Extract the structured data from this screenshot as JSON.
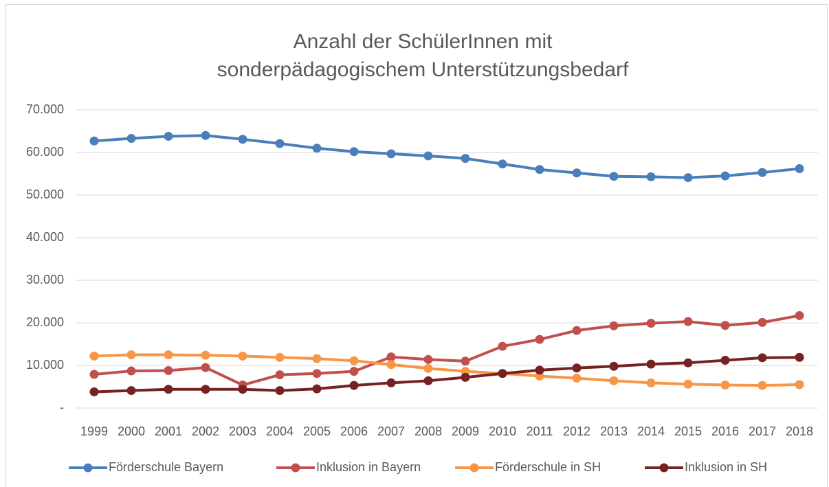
{
  "chart_data": {
    "type": "line",
    "title": "Anzahl der SchülerInnen mit sonderpädagogischem Unterstützungsbedarf",
    "categories": [
      "1999",
      "2000",
      "2001",
      "2002",
      "2003",
      "2004",
      "2005",
      "2006",
      "2007",
      "2008",
      "2009",
      "2010",
      "2011",
      "2012",
      "2013",
      "2014",
      "2015",
      "2016",
      "2017",
      "2018"
    ],
    "series": [
      {
        "name": "Förderschule Bayern",
        "color": "#4a7ebb",
        "values": [
          62700,
          63300,
          63800,
          64000,
          63100,
          62100,
          61000,
          60200,
          59700,
          59200,
          58600,
          57300,
          56000,
          55200,
          54400,
          54300,
          54100,
          54500,
          55300,
          56200
        ]
      },
      {
        "name": "Inklusion in Bayern",
        "color": "#c0504d",
        "values": [
          7900,
          8700,
          8800,
          9500,
          5400,
          7800,
          8100,
          8600,
          12000,
          11400,
          11000,
          14500,
          16100,
          18200,
          19300,
          19900,
          20300,
          19400,
          20100,
          21700
        ]
      },
      {
        "name": "Förderschule in SH",
        "color": "#f79646",
        "values": [
          12200,
          12500,
          12500,
          12400,
          12200,
          11900,
          11600,
          11100,
          10200,
          9300,
          8600,
          8100,
          7500,
          7000,
          6400,
          5900,
          5600,
          5400,
          5300,
          5500
        ]
      },
      {
        "name": "Inklusion in SH",
        "color": "#772222",
        "values": [
          3800,
          4100,
          4400,
          4400,
          4400,
          4100,
          4500,
          5300,
          5900,
          6400,
          7200,
          8100,
          8900,
          9400,
          9800,
          10300,
          10600,
          11200,
          11800,
          11900
        ]
      }
    ],
    "ylim": [
      0,
      70000
    ],
    "yticks": [
      {
        "value": 0,
        "label": "-"
      },
      {
        "value": 10000,
        "label": "10.000"
      },
      {
        "value": 20000,
        "label": "20.000"
      },
      {
        "value": 30000,
        "label": "30.000"
      },
      {
        "value": 40000,
        "label": "40.000"
      },
      {
        "value": 50000,
        "label": "50.000"
      },
      {
        "value": 60000,
        "label": "60.000"
      },
      {
        "value": 70000,
        "label": "70.000"
      }
    ],
    "grid": true,
    "legend": "bottom"
  }
}
